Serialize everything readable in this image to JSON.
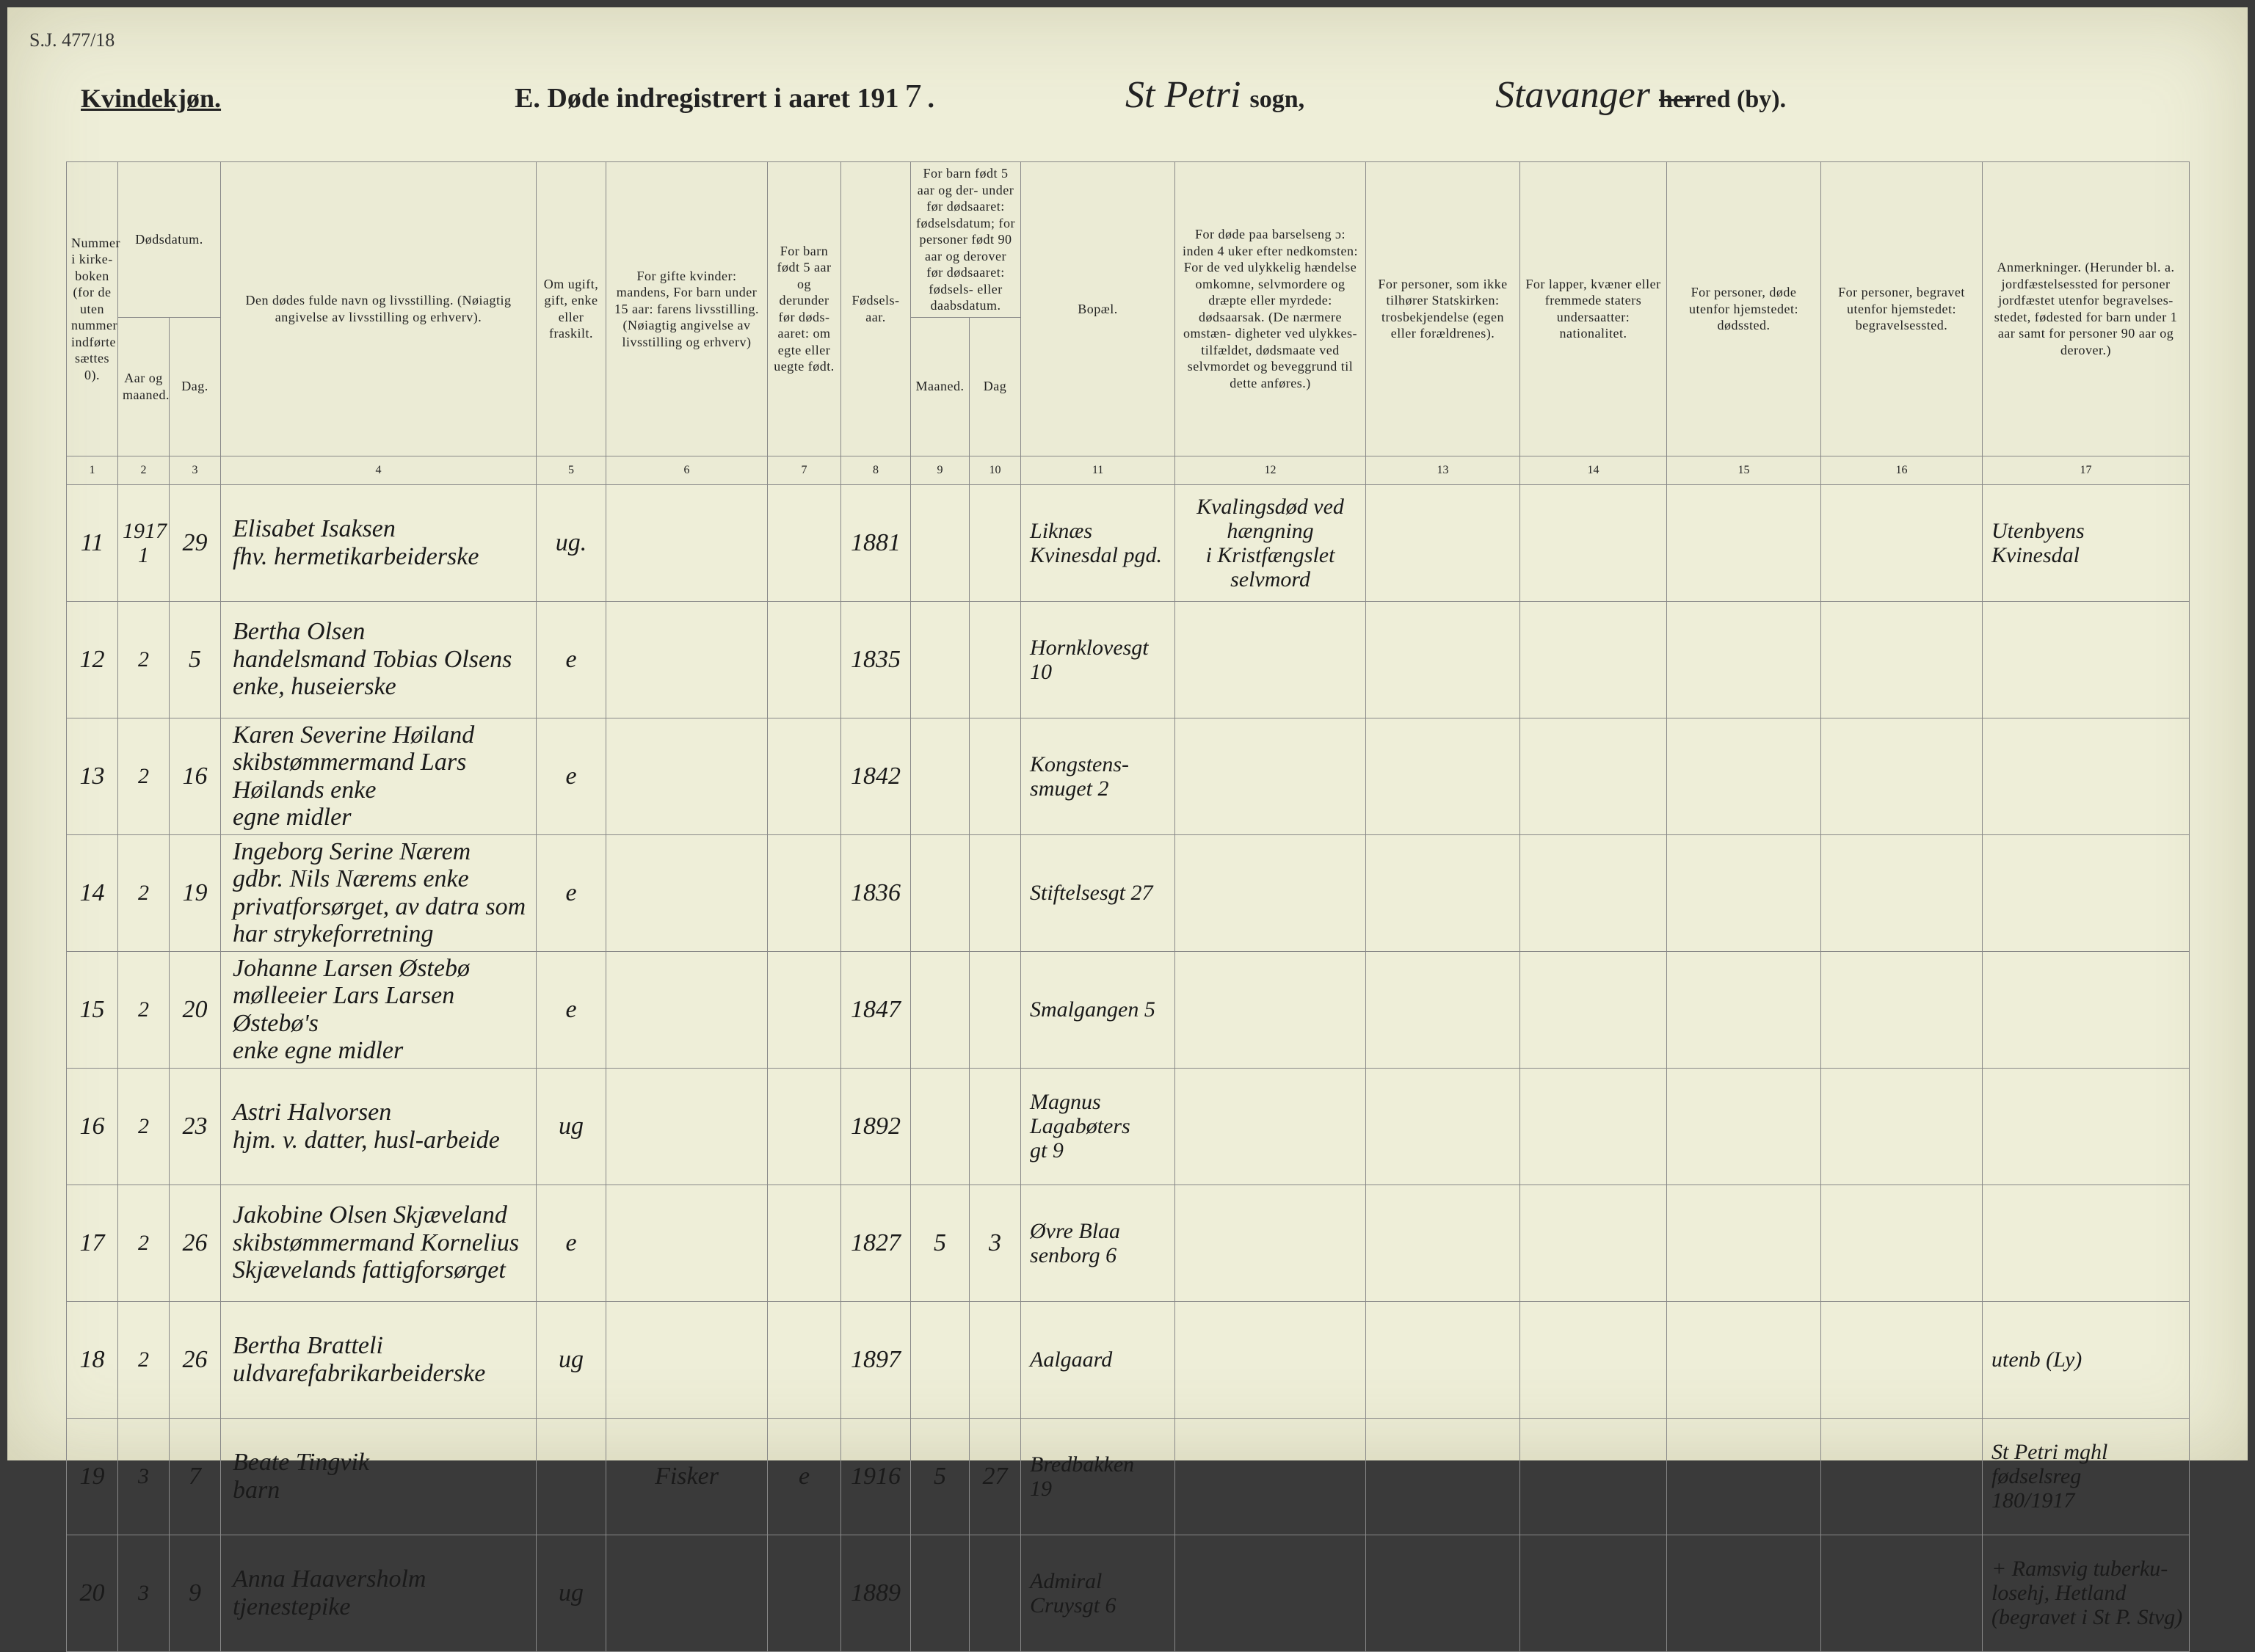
{
  "margin_note": "S.J. 477/18",
  "header": {
    "gender": "Kvindekjøn.",
    "title_prefix": "E.  Døde indregistrert i aaret 191",
    "year_digit": "7",
    "title_period": ".",
    "sogn_hand": "St Petri",
    "sogn_label": "sogn,",
    "herred_hand": "Stavanger",
    "herred_label_struck": "her",
    "herred_label_rest": "red (by)."
  },
  "columns": {
    "c1": "Nummer i kirke- boken (for de uten nummer indførte sættes 0).",
    "c2_group": "Dødsdatum.",
    "c2a": "Aar og maaned.",
    "c2b": "Dag.",
    "c4": "Den dødes fulde navn og livsstilling.\n(Nøiagtig angivelse av livsstilling og erhverv).",
    "c5": "Om ugift, gift, enke eller fraskilt.",
    "c6": "For gifte kvinder: mandens,\nFor barn under 15 aar: farens livsstilling.\n(Nøiagtig angivelse av livsstilling og erhverv)",
    "c7": "For barn født 5 aar og derunder før døds- aaret: om egte eller uegte født.",
    "c8": "Fødsels- aar.",
    "c9_group": "For barn født 5 aar og der- under før dødsaaret: fødselsdatum; for personer født 90 aar og derover før dødsaaret: fødsels- eller daabsdatum.",
    "c9a": "Maaned.",
    "c9b": "Dag",
    "c11": "Bopæl.",
    "c12": "For døde paa barselseng ɔ: inden 4 uker efter nedkomsten:\nFor de ved ulykkelig hændelse omkomne, selvmordere og dræpte eller myrdede: dødsaarsak.\n(De nærmere omstæn- digheter ved ulykkes- tilfældet, dødsmaate ved selvmordet og beveggrund til dette anføres.)",
    "c13": "For personer, som ikke tilhører Statskirken: trosbekjendelse (egen eller forældrenes).",
    "c14": "For lapper, kvæner eller fremmede staters undersaatter: nationalitet.",
    "c15": "For personer, døde utenfor hjemstedet: dødssted.",
    "c16": "For personer, begravet utenfor hjemstedet: begravelsessted.",
    "c17": "Anmerkninger.\n(Herunder bl. a. jordfæstelsessted for personer jordfæstet utenfor begravelses- stedet, fødested for barn under 1 aar samt for personer 90 aar og derover.)"
  },
  "colnums": [
    "1",
    "2",
    "3",
    "4",
    "5",
    "6",
    "7",
    "8",
    "9",
    "10",
    "11",
    "12",
    "13",
    "14",
    "15",
    "16",
    "17"
  ],
  "rows": [
    {
      "num": "11",
      "year_month": "1917\n1",
      "day": "29",
      "name": "Elisabet Isaksen\nfhv. hermetikarbeiderske",
      "civil": "ug.",
      "father": "",
      "egte": "",
      "birth_year": "1881",
      "b_month": "",
      "b_day": "",
      "bopael": "Liknæs\nKvinesdal pgd.",
      "cause": "Kvalingsdød ved hængning\ni Kristfængslet selvmord",
      "c13": "",
      "c14": "",
      "c15": "",
      "c16": "",
      "anm": "Utenbyens\nKvinesdal"
    },
    {
      "num": "12",
      "year_month": "2",
      "day": "5",
      "name": "Bertha Olsen\nhandelsmand Tobias Olsens\nenke, huseierske",
      "civil": "e",
      "father": "",
      "egte": "",
      "birth_year": "1835",
      "b_month": "",
      "b_day": "",
      "bopael": "Hornklovesgt\n10",
      "cause": "",
      "c13": "",
      "c14": "",
      "c15": "",
      "c16": "",
      "anm": ""
    },
    {
      "num": "13",
      "year_month": "2",
      "day": "16",
      "name": "Karen Severine Høiland\nskibstømmermand Lars\nHøilands enke\negne midler",
      "civil": "e",
      "father": "",
      "egte": "",
      "birth_year": "1842",
      "b_month": "",
      "b_day": "",
      "bopael": "Kongstens-\nsmuget 2",
      "cause": "",
      "c13": "",
      "c14": "",
      "c15": "",
      "c16": "",
      "anm": ""
    },
    {
      "num": "14",
      "year_month": "2",
      "day": "19",
      "name": "Ingeborg Serine Nærem\ngdbr. Nils Nærems enke\nprivatforsørget, av datra som\nhar strykeforretning",
      "civil": "e",
      "father": "",
      "egte": "",
      "birth_year": "1836",
      "b_month": "",
      "b_day": "",
      "bopael": "Stiftelsesgt 27",
      "cause": "",
      "c13": "",
      "c14": "",
      "c15": "",
      "c16": "",
      "anm": ""
    },
    {
      "num": "15",
      "year_month": "2",
      "day": "20",
      "name": "Johanne Larsen Østebø\nmølleeier Lars Larsen Østebø's\nenke     egne midler",
      "civil": "e",
      "father": "",
      "egte": "",
      "birth_year": "1847",
      "b_month": "",
      "b_day": "",
      "bopael": "Smalgangen 5",
      "cause": "",
      "c13": "",
      "c14": "",
      "c15": "",
      "c16": "",
      "anm": ""
    },
    {
      "num": "16",
      "year_month": "2",
      "day": "23",
      "name": "Astri Halvorsen\nhjm. v. datter, husl-arbeide",
      "civil": "ug",
      "father": "",
      "egte": "",
      "birth_year": "1892",
      "b_month": "",
      "b_day": "",
      "bopael": "Magnus\nLagabøters\ngt 9",
      "cause": "",
      "c13": "",
      "c14": "",
      "c15": "",
      "c16": "",
      "anm": ""
    },
    {
      "num": "17",
      "year_month": "2",
      "day": "26",
      "name": "Jakobine Olsen Skjæveland\nskibstømmermand Kornelius\nSkjævelands     fattigforsørget",
      "civil": "e",
      "father": "",
      "egte": "",
      "birth_year": "1827",
      "b_month": "5",
      "b_day": "3",
      "bopael": "Øvre Blaa\nsenborg 6",
      "cause": "",
      "c13": "",
      "c14": "",
      "c15": "",
      "c16": "",
      "anm": ""
    },
    {
      "num": "18",
      "year_month": "2",
      "day": "26",
      "name": "Bertha Bratteli\nuldvarefabrikarbeiderske",
      "civil": "ug",
      "father": "",
      "egte": "",
      "birth_year": "1897",
      "b_month": "",
      "b_day": "",
      "bopael": "Aalgaard",
      "cause": "",
      "c13": "",
      "c14": "",
      "c15": "",
      "c16": "",
      "anm": "utenb (Ly)"
    },
    {
      "num": "19",
      "year_month": "3",
      "day": "7",
      "name": "Beate Tingvik\n        barn",
      "civil": "",
      "father": "Fisker",
      "egte": "e",
      "birth_year": "1916",
      "b_month": "5",
      "b_day": "27",
      "bopael": "Bredbakken\n19",
      "cause": "",
      "c13": "",
      "c14": "",
      "c15": "",
      "c16": "",
      "anm": "St Petri mghl\nfødselsreg\n180/1917"
    },
    {
      "num": "20",
      "year_month": "3",
      "day": "9",
      "name": "Anna Haaversholm\ntjenestepike",
      "civil": "ug",
      "father": "",
      "egte": "",
      "birth_year": "1889",
      "b_month": "",
      "b_day": "",
      "bopael": "Admiral\nCruysgt 6",
      "cause": "",
      "c13": "",
      "c14": "",
      "c15": "",
      "c16": "",
      "anm": "+ Ramsvig tuberku-\nlosehj, Hetland\n(begravet i St P. Stvg)"
    }
  ]
}
